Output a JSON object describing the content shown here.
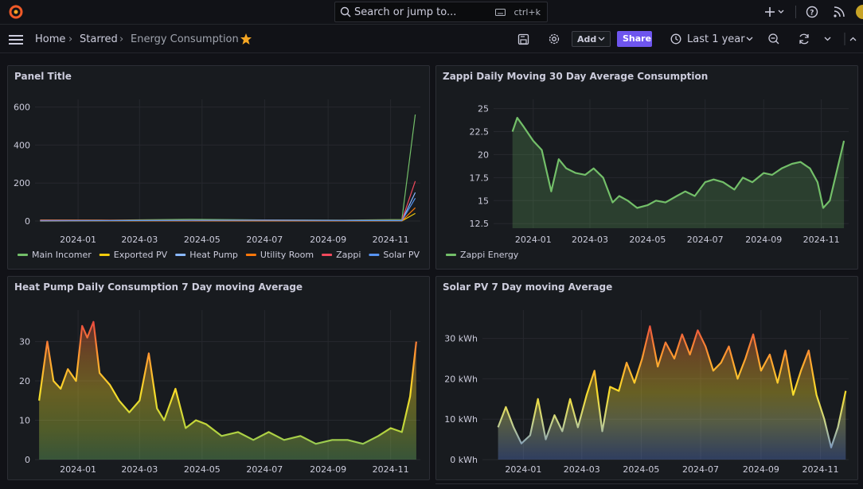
{
  "topbar": {
    "search_placeholder": "Search or jump to...",
    "search_shortcut": "ctrl+k"
  },
  "navbar": {
    "breadcrumb": [
      "Home",
      "Starred",
      "Energy Consumption"
    ],
    "add_label": "Add",
    "share_label": "Share",
    "time_range": "Last 1 year"
  },
  "colors": {
    "main_incomer": "#73bf69",
    "exported_pv": "#f2cc0c",
    "heat_pump": "#8ab8ff",
    "utility_room": "#ff780a",
    "zappi": "#f2495c",
    "solar_pv": "#5794f2",
    "brand": "#f05a28"
  },
  "panels": [
    {
      "title": "Panel Title"
    },
    {
      "title": "Zappi Daily Moving 30 Day Average Consumption"
    },
    {
      "title": "Heat Pump Daily Consumption 7 Day moving Average"
    },
    {
      "title": "Solar PV 7 Day moving Average"
    }
  ],
  "chart_data": [
    {
      "type": "line",
      "title": "Panel Title",
      "y_ticks": [
        "0",
        "200",
        "400",
        "600"
      ],
      "ylim": [
        0,
        640
      ],
      "x_ticks": [
        "2024-01",
        "2024-03",
        "2024-05",
        "2024-07",
        "2024-09",
        "2024-11"
      ],
      "legend_placement": "bottom-left",
      "series": [
        {
          "name": "Main Incomer",
          "color": "#73bf69",
          "x": [
            "2023-11-25",
            "2024-02-01",
            "2024-04-20",
            "2024-07-01",
            "2024-09-15",
            "2024-11-12",
            "2024-11-25"
          ],
          "values": [
            6,
            5,
            9,
            6,
            5,
            8,
            560
          ]
        },
        {
          "name": "Exported PV",
          "color": "#f2cc0c",
          "x": [
            "2023-11-25",
            "2024-04-01",
            "2024-07-01",
            "2024-11-12",
            "2024-11-25"
          ],
          "values": [
            0,
            2,
            2,
            1,
            40
          ]
        },
        {
          "name": "Heat Pump",
          "color": "#8ab8ff",
          "x": [
            "2023-11-25",
            "2024-04-01",
            "2024-07-01",
            "2024-11-12",
            "2024-11-25"
          ],
          "values": [
            3,
            2,
            1,
            2,
            150
          ]
        },
        {
          "name": "Utility Room",
          "color": "#ff780a",
          "x": [
            "2023-11-25",
            "2024-04-01",
            "2024-07-01",
            "2024-11-12",
            "2024-11-25"
          ],
          "values": [
            2,
            1,
            1,
            1,
            70
          ]
        },
        {
          "name": "Zappi",
          "color": "#f2495c",
          "x": [
            "2023-11-25",
            "2024-04-01",
            "2024-07-01",
            "2024-11-12",
            "2024-11-25"
          ],
          "values": [
            4,
            3,
            5,
            3,
            210
          ]
        },
        {
          "name": "Solar PV",
          "color": "#5794f2",
          "x": [
            "2023-11-25",
            "2024-04-01",
            "2024-07-01",
            "2024-11-12",
            "2024-11-25"
          ],
          "values": [
            1,
            3,
            4,
            2,
            120
          ]
        }
      ]
    },
    {
      "type": "area",
      "title": "Zappi Daily Moving 30 Day Average Consumption",
      "y_ticks": [
        "12.5",
        "15",
        "17.5",
        "20",
        "22.5",
        "25"
      ],
      "ylim": [
        12,
        26
      ],
      "x_ticks": [
        "2024-01",
        "2024-03",
        "2024-05",
        "2024-07",
        "2024-09",
        "2024-11"
      ],
      "legend_placement": "bottom-left",
      "series": [
        {
          "name": "Zappi Energy",
          "color": "#73bf69",
          "x": [
            "2023-12-10",
            "2023-12-15",
            "2023-12-22",
            "2024-01-01",
            "2024-01-10",
            "2024-01-20",
            "2024-01-28",
            "2024-02-05",
            "2024-02-15",
            "2024-02-25",
            "2024-03-05",
            "2024-03-15",
            "2024-03-25",
            "2024-04-01",
            "2024-04-10",
            "2024-04-20",
            "2024-05-01",
            "2024-05-10",
            "2024-05-20",
            "2024-06-01",
            "2024-06-10",
            "2024-06-20",
            "2024-07-01",
            "2024-07-10",
            "2024-07-20",
            "2024-08-01",
            "2024-08-10",
            "2024-08-20",
            "2024-09-01",
            "2024-09-10",
            "2024-09-20",
            "2024-10-01",
            "2024-10-10",
            "2024-10-20",
            "2024-10-28",
            "2024-11-03",
            "2024-11-10",
            "2024-11-25"
          ],
          "values": [
            22.5,
            24,
            23,
            21.5,
            20.5,
            16,
            19.5,
            18.5,
            18,
            17.8,
            18.5,
            17.5,
            14.8,
            15.5,
            15,
            14.2,
            14.5,
            15,
            14.8,
            15.5,
            16,
            15.5,
            17,
            17.3,
            17,
            16.2,
            17.5,
            17,
            18,
            17.8,
            18.5,
            19,
            19.2,
            18.5,
            17,
            14.2,
            15,
            21.5
          ]
        }
      ]
    },
    {
      "type": "area",
      "title": "Heat Pump Daily Consumption 7 Day moving Average",
      "y_ticks": [
        "0",
        "10",
        "20",
        "30"
      ],
      "ylim": [
        0,
        38
      ],
      "x_ticks": [
        "2024-01",
        "2024-03",
        "2024-05",
        "2024-07",
        "2024-09",
        "2024-11"
      ],
      "series": [
        {
          "name": "",
          "x": [
            "2023-11-24",
            "2023-12-02",
            "2023-12-08",
            "2023-12-15",
            "2023-12-22",
            "2023-12-30",
            "2024-01-05",
            "2024-01-10",
            "2024-01-16",
            "2024-01-22",
            "2024-02-01",
            "2024-02-10",
            "2024-02-20",
            "2024-03-01",
            "2024-03-10",
            "2024-03-18",
            "2024-03-25",
            "2024-04-05",
            "2024-04-15",
            "2024-04-25",
            "2024-05-05",
            "2024-05-20",
            "2024-06-05",
            "2024-06-20",
            "2024-07-05",
            "2024-07-20",
            "2024-08-05",
            "2024-08-20",
            "2024-09-05",
            "2024-09-20",
            "2024-10-05",
            "2024-10-20",
            "2024-11-01",
            "2024-11-12",
            "2024-11-20",
            "2024-11-26"
          ],
          "values": [
            15,
            30,
            20,
            18,
            23,
            20,
            34,
            31,
            35,
            22,
            19,
            15,
            12,
            15,
            27,
            13,
            10,
            18,
            8,
            10,
            9,
            6,
            7,
            5,
            7,
            5,
            6,
            4,
            5,
            5,
            4,
            6,
            8,
            7,
            16,
            30
          ]
        }
      ]
    },
    {
      "type": "area",
      "title": "Solar PV 7 Day moving Average",
      "y_ticks": [
        "0 kWh",
        "10 kWh",
        "20 kWh",
        "30 kWh"
      ],
      "ylim": [
        0,
        37
      ],
      "x_ticks": [
        "2024-01",
        "2024-03",
        "2024-05",
        "2024-07",
        "2024-09",
        "2024-11"
      ],
      "series": [
        {
          "name": "",
          "x": [
            "2023-12-06",
            "2023-12-14",
            "2023-12-22",
            "2023-12-30",
            "2024-01-08",
            "2024-01-16",
            "2024-01-24",
            "2024-02-02",
            "2024-02-10",
            "2024-02-18",
            "2024-02-26",
            "2024-03-06",
            "2024-03-14",
            "2024-03-22",
            "2024-03-30",
            "2024-04-08",
            "2024-04-16",
            "2024-04-24",
            "2024-05-02",
            "2024-05-10",
            "2024-05-18",
            "2024-05-26",
            "2024-06-04",
            "2024-06-12",
            "2024-06-20",
            "2024-06-28",
            "2024-07-06",
            "2024-07-14",
            "2024-07-22",
            "2024-07-30",
            "2024-08-08",
            "2024-08-16",
            "2024-08-24",
            "2024-09-01",
            "2024-09-10",
            "2024-09-18",
            "2024-09-26",
            "2024-10-04",
            "2024-10-12",
            "2024-10-20",
            "2024-10-28",
            "2024-11-05",
            "2024-11-12",
            "2024-11-19",
            "2024-11-27"
          ],
          "values": [
            8,
            13,
            8,
            4,
            6,
            15,
            5,
            11,
            7,
            15,
            8,
            16,
            22,
            7,
            18,
            17,
            24,
            19,
            25,
            33,
            23,
            29,
            25,
            31,
            26,
            32,
            28,
            22,
            24,
            28,
            20,
            25,
            31,
            22,
            26,
            19,
            27,
            16,
            22,
            27,
            16,
            10,
            3,
            8,
            17
          ]
        }
      ]
    }
  ]
}
